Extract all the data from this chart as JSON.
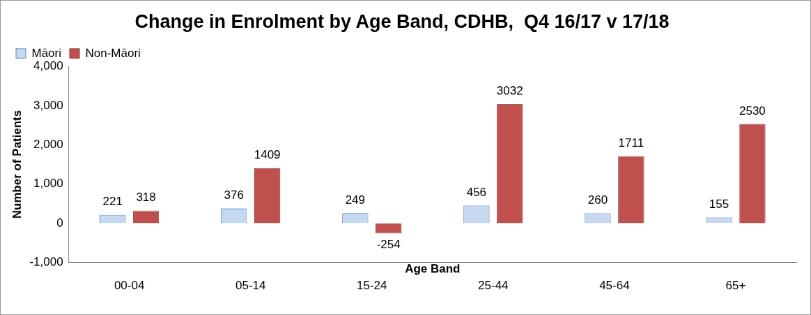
{
  "chart_data": {
    "type": "bar",
    "title": "Change in Enrolment by Age Band, CDHB,  Q4 16/17 v 17/18",
    "xlabel": "Age Band",
    "ylabel": "Number of Patients",
    "categories": [
      "00-04",
      "05-14",
      "15-24",
      "25-44",
      "45-64",
      "65+"
    ],
    "series": [
      {
        "name": "Māori",
        "color": "#c6d9f1",
        "values": [
          221,
          376,
          249,
          456,
          260,
          155
        ]
      },
      {
        "name": "Non-Māori",
        "color": "#c0504d",
        "values": [
          318,
          1409,
          -254,
          3032,
          1711,
          2530
        ]
      }
    ],
    "ylim": [
      -1000,
      4000
    ],
    "yticks": [
      {
        "value": -1000,
        "label": "-1,000"
      },
      0,
      {
        "value": 1000,
        "label": "1,000"
      },
      {
        "value": 2000,
        "label": "2,000"
      },
      {
        "value": 3000,
        "label": "3,000"
      },
      {
        "value": 4000,
        "label": "4,000"
      }
    ],
    "grid": false,
    "legend": "top left",
    "data_labels": true
  }
}
